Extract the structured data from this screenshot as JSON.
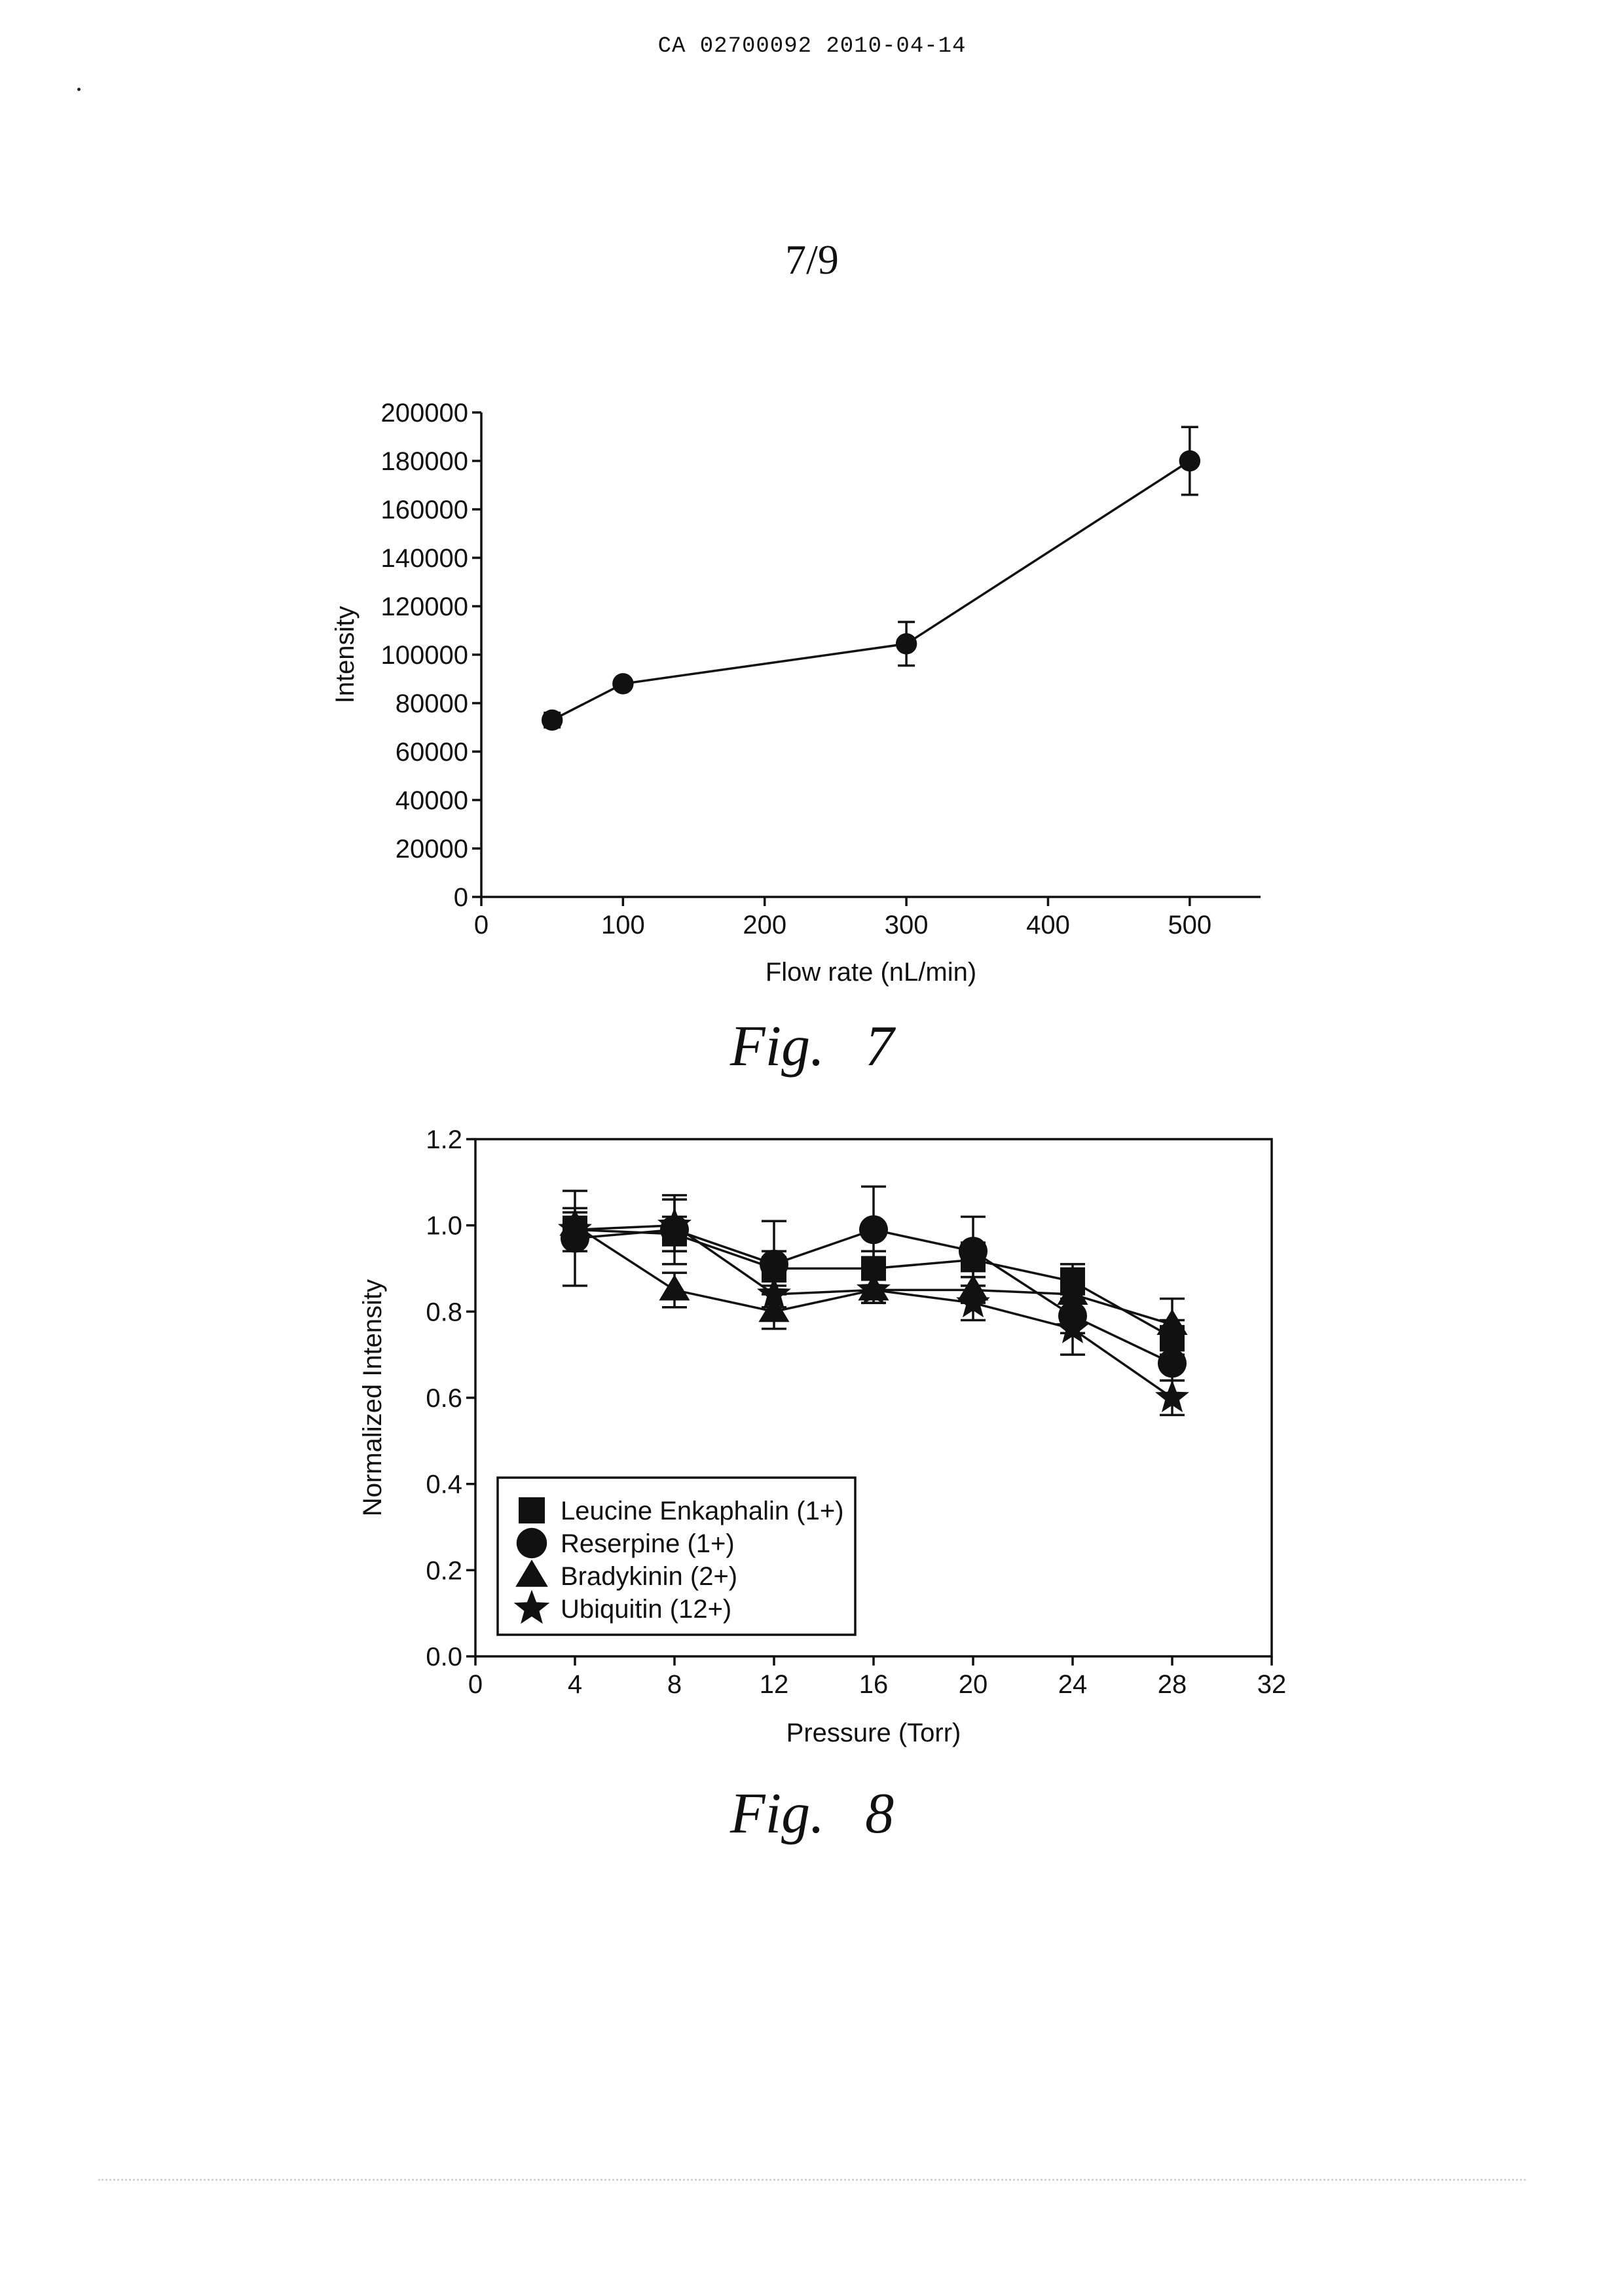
{
  "header": {
    "doc_id": "CA 02700092 2010-04-14",
    "page_number": "7/9"
  },
  "colors": {
    "ink": "#111111",
    "paper": "#ffffff"
  },
  "figures": [
    {
      "caption": "Fig. 7"
    },
    {
      "caption": "Fig. 8"
    }
  ],
  "chart_data": [
    {
      "type": "line",
      "xlabel": "Flow rate (nL/min)",
      "ylabel": "Intensity",
      "xlim": [
        0,
        550
      ],
      "ylim": [
        0,
        200000
      ],
      "x_ticks": [
        0,
        100,
        200,
        300,
        400,
        500
      ],
      "y_ticks": [
        0,
        20000,
        40000,
        60000,
        80000,
        100000,
        120000,
        140000,
        160000,
        180000,
        200000
      ],
      "box": false,
      "grid": false,
      "series": [
        {
          "marker": "circle",
          "x": [
            50,
            100,
            300,
            500
          ],
          "y": [
            73000,
            88000,
            104500,
            180000
          ],
          "error": [
            3000,
            2000,
            9000,
            14000
          ]
        }
      ]
    },
    {
      "type": "line",
      "xlabel": "Pressure (Torr)",
      "ylabel": "Normalized Intensity",
      "xlim": [
        0,
        32
      ],
      "ylim": [
        0,
        1.2
      ],
      "x_ticks": [
        0,
        4,
        8,
        12,
        16,
        20,
        24,
        28,
        32
      ],
      "y_ticks": [
        0.0,
        0.2,
        0.4,
        0.6,
        0.8,
        1.0,
        1.2
      ],
      "y_tick_labels": [
        "0.0",
        "0.2",
        "0.4",
        "0.6",
        "0.8",
        "1.0",
        "1.2"
      ],
      "box": true,
      "grid": false,
      "legend_position": "bottom-left",
      "series": [
        {
          "name": "Leucine Enkaphalin (1+)",
          "marker": "square",
          "x": [
            4,
            8,
            12,
            16,
            20,
            24,
            28
          ],
          "y": [
            0.99,
            0.98,
            0.9,
            0.9,
            0.92,
            0.87,
            0.74
          ],
          "error": [
            0.05,
            0.04,
            0.04,
            0.04,
            0.04,
            0.03,
            0.04
          ]
        },
        {
          "name": "Reserpine (1+)",
          "marker": "circle",
          "x": [
            4,
            8,
            12,
            16,
            20,
            24,
            28
          ],
          "y": [
            0.97,
            0.99,
            0.91,
            0.99,
            0.94,
            0.79,
            0.68
          ],
          "error": [
            0.11,
            0.08,
            0.1,
            0.1,
            0.08,
            0.04,
            0.04
          ]
        },
        {
          "name": "Bradykinin (2+)",
          "marker": "triangle",
          "x": [
            4,
            8,
            12,
            16,
            20,
            24,
            28
          ],
          "y": [
            1.0,
            0.85,
            0.8,
            0.85,
            0.85,
            0.84,
            0.77
          ],
          "error": [
            0.03,
            0.04,
            0.04,
            0.03,
            0.03,
            0.07,
            0.06
          ]
        },
        {
          "name": "Ubiquitin (12+)",
          "marker": "star",
          "x": [
            4,
            8,
            12,
            16,
            20,
            24,
            28
          ],
          "y": [
            0.99,
            1.0,
            0.84,
            0.85,
            0.82,
            0.76,
            0.6
          ],
          "error": [
            0.03,
            0.06,
            0.03,
            0.03,
            0.04,
            0.06,
            0.04
          ]
        }
      ]
    }
  ]
}
